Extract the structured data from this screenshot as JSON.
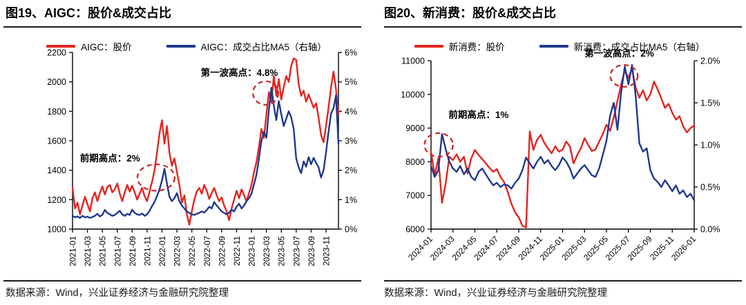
{
  "source_note": "数据来源：Wind，兴业证券经济与金融研究院整理",
  "colors": {
    "price_red": "#e3241f",
    "ratio_blue": "#1f388f",
    "annotation_red": "#cf2020",
    "axis_black": "#000000"
  },
  "chart_data": [
    {
      "type": "line",
      "title": "图19、AIGC：股价&成交占比",
      "source": "数据来源：Wind，兴业证券经济与金融研究院整理",
      "legend": [
        {
          "label": "AIGC：股价",
          "color": "#e3241f"
        },
        {
          "label": "AIGC：成交占比MA5（右轴）",
          "color": "#1f388f"
        }
      ],
      "x_tick_labels": [
        "2021-01",
        "2021-03",
        "2021-05",
        "2021-07",
        "2021-09",
        "2021-11",
        "2022-01",
        "2022-03",
        "2022-05",
        "2022-07",
        "2022-09",
        "2022-11",
        "2023-01",
        "2023-03",
        "2023-05",
        "2023-07",
        "2023-09",
        "2023-11"
      ],
      "x_label_rotation": -90,
      "points_per_month": 3,
      "left_axis": {
        "min": 1000,
        "max": 2200,
        "ticks": [
          1000,
          1200,
          1400,
          1600,
          1800,
          2000,
          2200
        ]
      },
      "right_axis": {
        "min": 0,
        "max": 6,
        "ticks": [
          0,
          1,
          2,
          3,
          4,
          5,
          6
        ],
        "tick_labels": [
          "0%",
          "1%",
          "2%",
          "3%",
          "4%",
          "5%",
          "6%"
        ]
      },
      "series": [
        {
          "name": "AIGC：股价",
          "axis": "left",
          "color": "#e3241f",
          "values": [
            1280,
            1140,
            1180,
            1100,
            1160,
            1220,
            1170,
            1120,
            1210,
            1250,
            1190,
            1245,
            1290,
            1235,
            1285,
            1300,
            1250,
            1270,
            1310,
            1240,
            1190,
            1250,
            1300,
            1255,
            1295,
            1250,
            1200,
            1240,
            1280,
            1225,
            1190,
            1255,
            1320,
            1400,
            1520,
            1650,
            1740,
            1580,
            1700,
            1520,
            1430,
            1480,
            1390,
            1300,
            1180,
            1230,
            1100,
            1030,
            1120,
            1200,
            1255,
            1280,
            1240,
            1300,
            1260,
            1205,
            1245,
            1280,
            1230,
            1190,
            1215,
            1160,
            1120,
            1060,
            1140,
            1200,
            1260,
            1210,
            1270,
            1230,
            1190,
            1245,
            1300,
            1385,
            1455,
            1560,
            1680,
            1620,
            1780,
            1930,
            1860,
            2040,
            1905,
            2020,
            1880,
            1965,
            2040,
            2000,
            2110,
            2160,
            2150,
            1985,
            1905,
            1940,
            1865,
            1915,
            1870,
            1825,
            1855,
            1760,
            1640,
            1590,
            1700,
            1825,
            1960,
            2070,
            1950,
            1780
          ]
        },
        {
          "name": "AIGC：成交占比MA5（右轴）",
          "axis": "right",
          "color": "#1f388f",
          "values": [
            0.45,
            0.4,
            0.43,
            0.38,
            0.45,
            0.4,
            0.42,
            0.38,
            0.41,
            0.45,
            0.52,
            0.43,
            0.48,
            0.65,
            0.55,
            0.5,
            0.45,
            0.48,
            0.55,
            0.62,
            0.5,
            0.45,
            0.52,
            0.48,
            0.66,
            0.55,
            0.5,
            0.48,
            0.53,
            0.45,
            0.5,
            0.62,
            0.78,
            0.92,
            1.12,
            1.35,
            1.65,
            2.05,
            1.55,
            1.1,
            0.95,
            1.05,
            1.22,
            0.95,
            0.8,
            0.7,
            0.6,
            0.55,
            0.5,
            0.48,
            0.52,
            0.55,
            0.6,
            0.56,
            0.65,
            0.76,
            0.7,
            0.92,
            0.8,
            0.7,
            0.6,
            0.55,
            0.5,
            0.56,
            0.66,
            0.6,
            0.76,
            0.86,
            0.7,
            0.8,
            0.95,
            1.05,
            1.2,
            1.52,
            1.85,
            2.4,
            3.0,
            3.3,
            3.1,
            4.05,
            4.8,
            4.2,
            3.7,
            4.35,
            3.9,
            3.5,
            3.75,
            4.0,
            3.8,
            3.4,
            2.4,
            2.1,
            1.9,
            2.3,
            2.12,
            2.45,
            2.2,
            2.42,
            2.25,
            2.1,
            1.75,
            2.0,
            2.6,
            3.3,
            3.92,
            4.1,
            4.55,
            2.9
          ]
        }
      ],
      "annotations": [
        {
          "text": "前期高点：2%",
          "text_month": 1.0,
          "text_pct": 2.3,
          "anchor": "start",
          "ellipse": {
            "month": 11.2,
            "pct": 1.75,
            "rx_months": 2.5,
            "ry_pct": 0.45
          }
        },
        {
          "text": "第一波高点：4.8%",
          "text_month": 17.2,
          "text_pct": 5.2,
          "anchor": "start",
          "ellipse": {
            "month": 25.9,
            "pct": 4.62,
            "rx_months": 1.7,
            "ry_pct": 0.4
          }
        }
      ]
    },
    {
      "type": "line",
      "title": "图20、新消费：股价&成交占比",
      "source": "数据来源：Wind，兴业证券经济与金融研究院整理",
      "legend": [
        {
          "label": "新消费：股价",
          "color": "#e3241f"
        },
        {
          "label": "新消费：成交占比MA5（右轴）",
          "color": "#1f388f"
        }
      ],
      "x_tick_labels": [
        "2024-01",
        "2024-03",
        "2024-05",
        "2024-07",
        "2024-09",
        "2024-11",
        "2025-01",
        "2025-03",
        "2025-05",
        "2025-07",
        "2025-09",
        "2025-11",
        "2026-01"
      ],
      "x_label_rotation": -45,
      "points_per_month": 3,
      "left_axis": {
        "min": 6000,
        "max": 11000,
        "ticks": [
          6000,
          7000,
          8000,
          9000,
          10000,
          11000
        ]
      },
      "right_axis": {
        "min": 0,
        "max": 2,
        "ticks": [
          0,
          0.5,
          1,
          1.5,
          2
        ],
        "tick_labels": [
          "0.0%",
          "0.5%",
          "1.0%",
          "1.5%",
          "2.0%"
        ]
      },
      "series": [
        {
          "name": "新消费：股价",
          "axis": "left",
          "color": "#e3241f",
          "values": [
            8300,
            7600,
            8100,
            6780,
            7350,
            8150,
            8050,
            8220,
            8000,
            8150,
            7650,
            8100,
            8350,
            8200,
            8080,
            7950,
            7820,
            7700,
            7780,
            7550,
            7400,
            7100,
            6750,
            6500,
            6350,
            6100,
            6050,
            8900,
            8350,
            8650,
            8800,
            8560,
            8400,
            8250,
            8460,
            8300,
            8360,
            8600,
            8450,
            7950,
            8200,
            8400,
            8700,
            8500,
            8320,
            8360,
            8600,
            8820,
            9100,
            8920,
            9320,
            9800,
            10300,
            10700,
            10500,
            10760,
            10200,
            9900,
            10120,
            9820,
            10000,
            10380,
            10150,
            9880,
            9600,
            9720,
            9450,
            9250,
            9350,
            9050,
            8870,
            9000,
            9080
          ]
        },
        {
          "name": "新消费：成交占比MA5（右轴）",
          "axis": "right",
          "color": "#1f388f",
          "values": [
            0.75,
            0.62,
            0.7,
            1.13,
            0.95,
            0.8,
            0.72,
            0.68,
            0.75,
            0.65,
            0.72,
            0.62,
            0.58,
            0.68,
            0.72,
            0.65,
            0.58,
            0.52,
            0.55,
            0.5,
            0.53,
            0.52,
            0.48,
            0.55,
            0.6,
            0.7,
            0.85,
            0.78,
            0.72,
            0.8,
            0.86,
            0.78,
            0.82,
            0.75,
            0.7,
            0.76,
            0.85,
            0.8,
            0.72,
            0.6,
            0.66,
            0.72,
            0.76,
            0.7,
            0.64,
            0.62,
            0.72,
            0.88,
            1.05,
            1.35,
            1.5,
            1.18,
            1.62,
            1.93,
            1.72,
            1.95,
            1.58,
            1.02,
            0.92,
            0.96,
            0.7,
            0.6,
            0.56,
            0.5,
            0.58,
            0.52,
            0.45,
            0.52,
            0.42,
            0.46,
            0.38,
            0.42,
            0.34
          ]
        }
      ],
      "annotations": [
        {
          "text": "前期高点：1%",
          "text_month": 1.6,
          "text_pct": 1.32,
          "anchor": "start",
          "ellipse": {
            "month": 0.7,
            "pct": 1.0,
            "rx_months": 1.3,
            "ry_pct": 0.14
          }
        },
        {
          "text": "第一波高点：2%",
          "text_month": 14.0,
          "text_pct": 2.05,
          "anchor": "start",
          "ellipse": {
            "month": 17.6,
            "pct": 1.82,
            "rx_months": 1.25,
            "ry_pct": 0.13
          }
        }
      ]
    }
  ]
}
